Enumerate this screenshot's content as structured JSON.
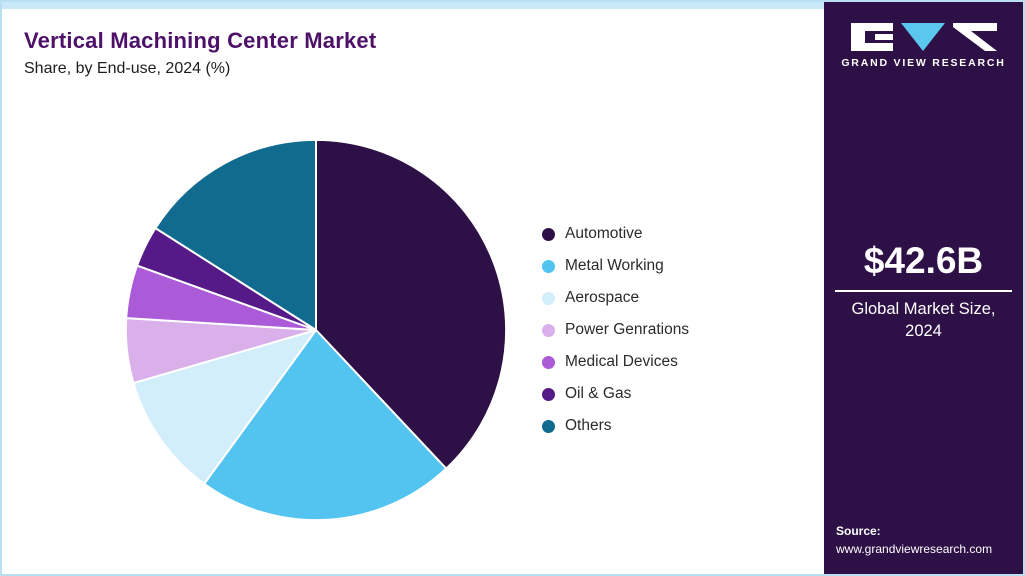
{
  "header": {
    "title": "Vertical Machining Center Market",
    "subtitle": "Share, by End-use, 2024 (%)"
  },
  "chart_data": {
    "type": "pie",
    "title": "Vertical Machining Center Market Share, by End-use, 2024 (%)",
    "labels": [
      "Automotive",
      "Metal Working",
      "Aerospace",
      "Power Genrations",
      "Medical Devices",
      "Oil & Gas",
      "Others"
    ],
    "values": [
      38,
      22,
      10.5,
      5.5,
      4.5,
      3.5,
      16
    ],
    "unit": "%",
    "colors": [
      "#2d1045",
      "#53c3ef",
      "#d3eefb",
      "#d9b0e9",
      "#ab5ad8",
      "#551a87",
      "#106b8e"
    ],
    "legend_position": "right",
    "start_angle_deg": 0,
    "direction": "clockwise",
    "stroke_color": "#ffffff"
  },
  "sidebar": {
    "brand": "GRAND VIEW RESEARCH",
    "market_size": "$42.6B",
    "market_size_caption": "Global Market Size, 2024",
    "source_label": "Source:",
    "source_url": "www.grandviewresearch.com",
    "bg_color": "#2d1045",
    "accent_color": "#c9e9f8"
  }
}
